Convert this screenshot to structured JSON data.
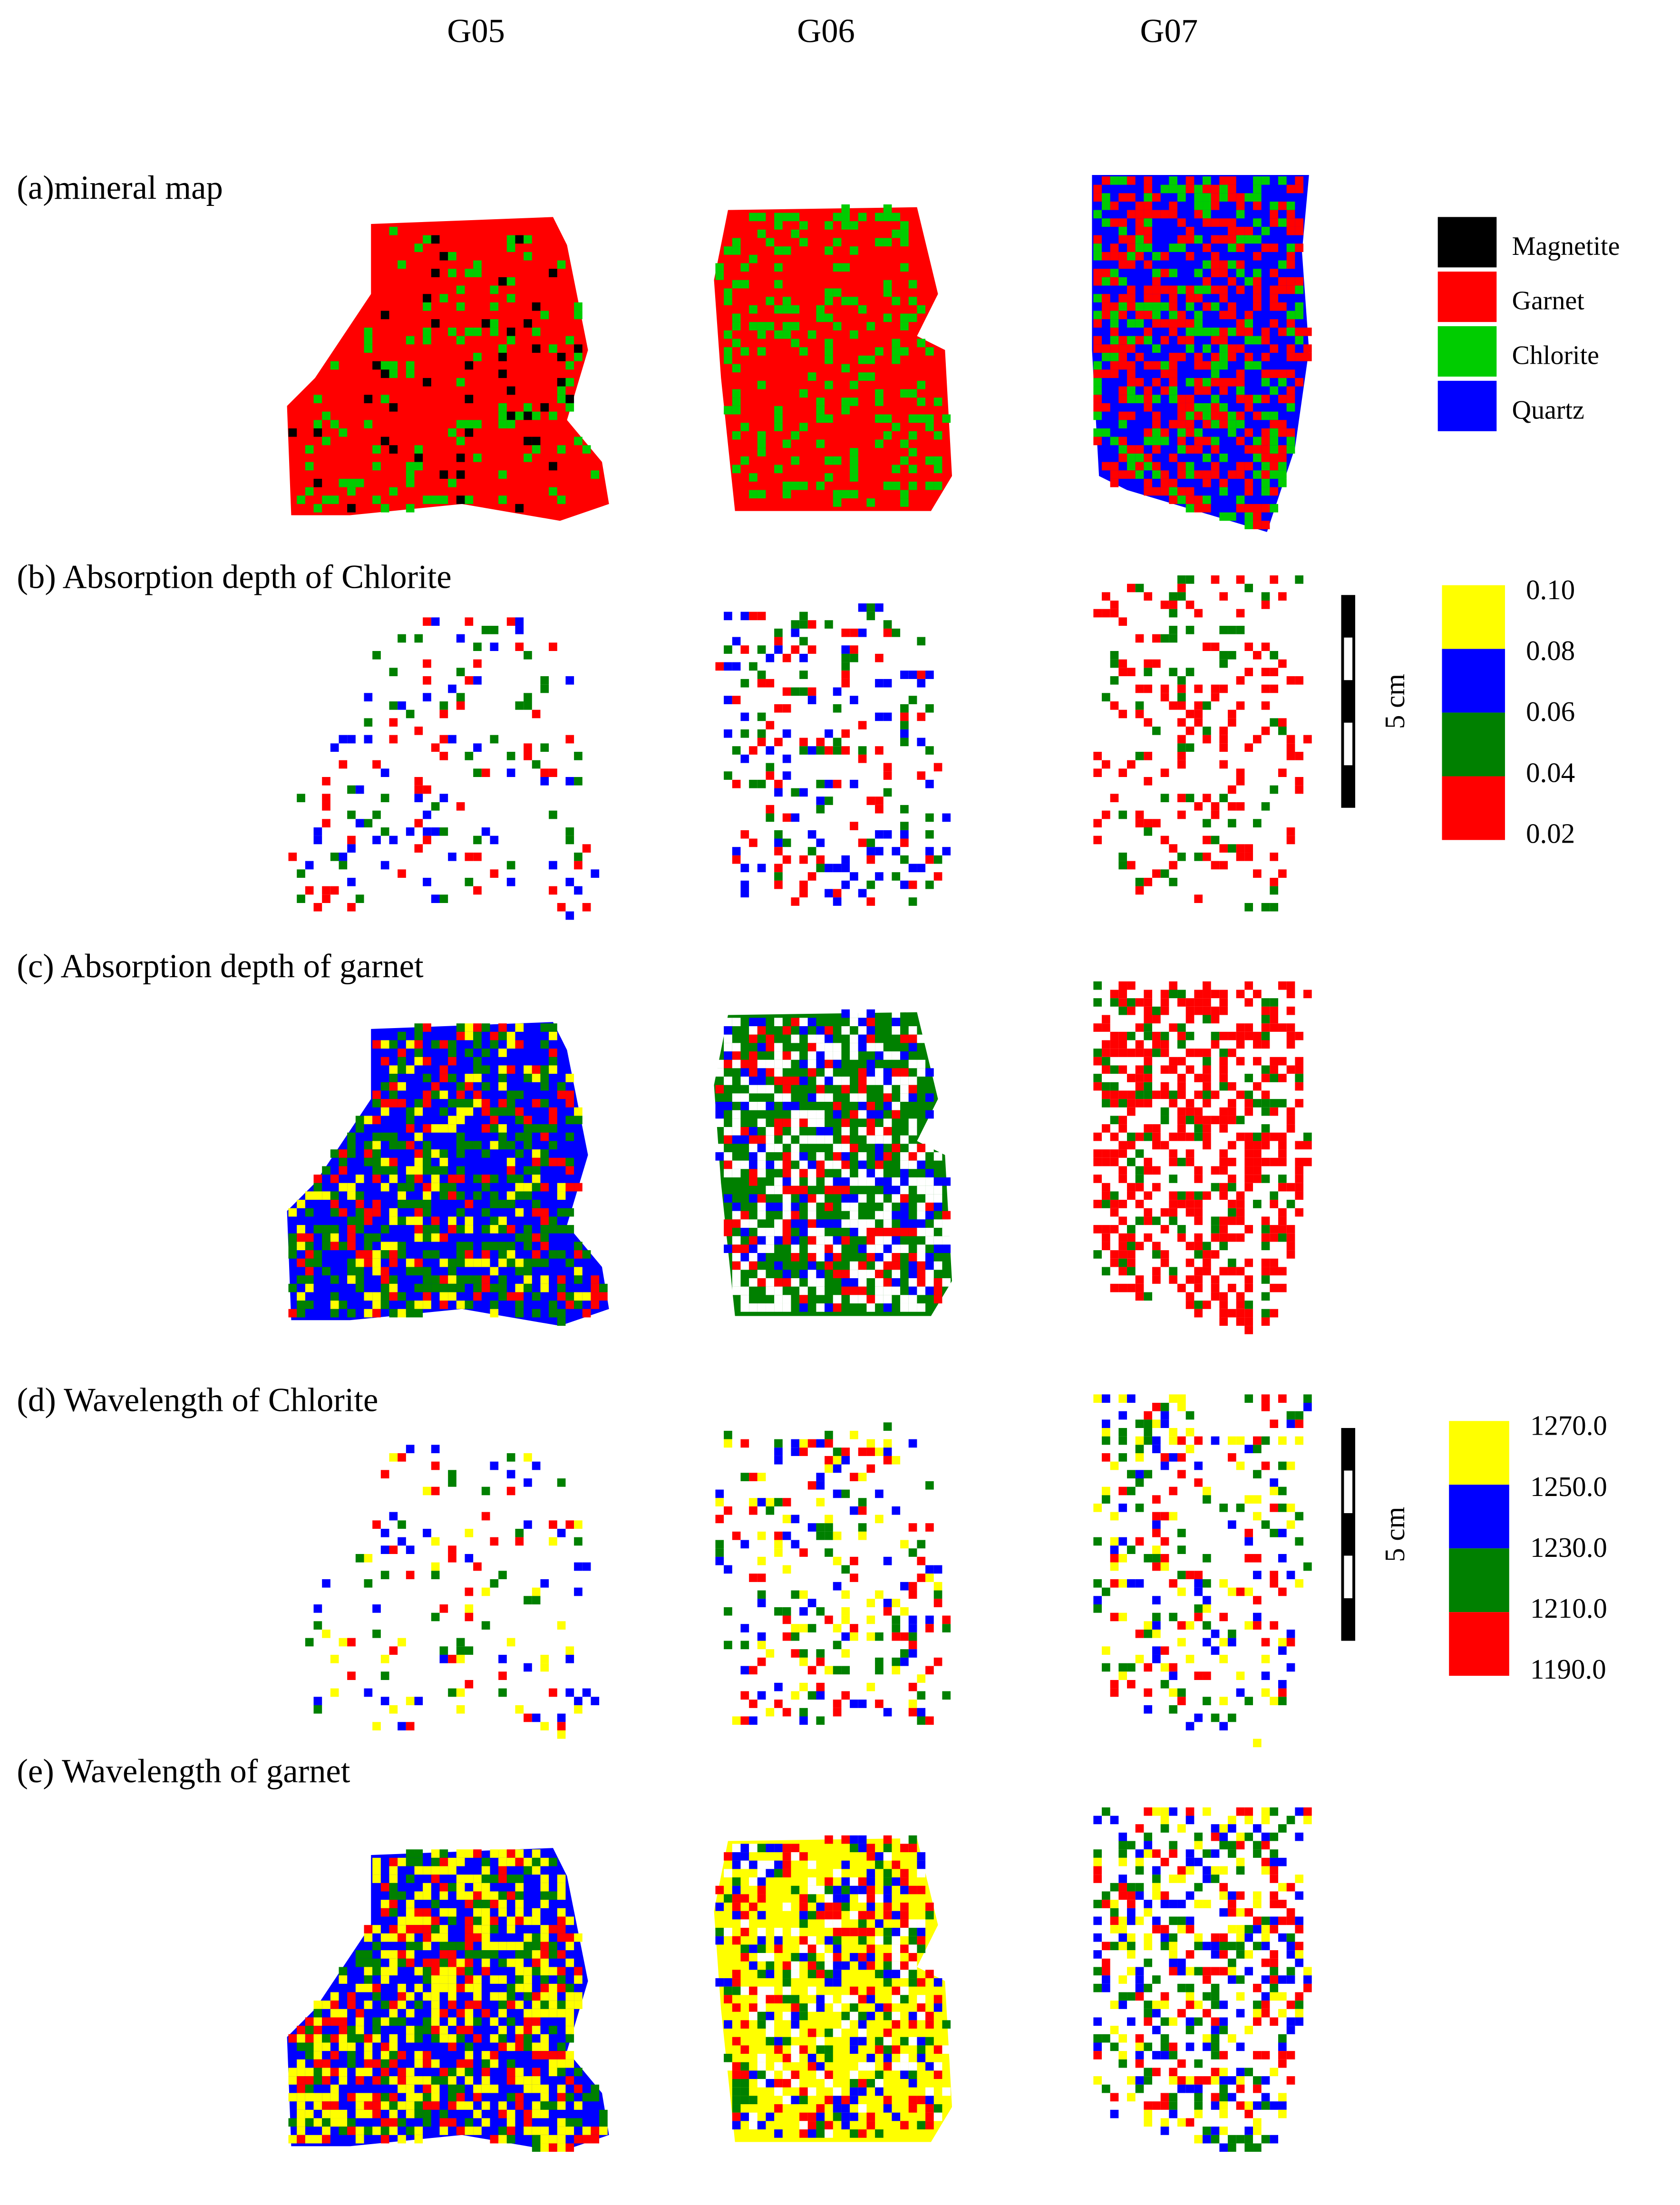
{
  "columns": [
    "G05",
    "G06",
    "G07"
  ],
  "rows": [
    {
      "label": "(a)mineral  map"
    },
    {
      "label": "(b) Absorption depth of Chlorite"
    },
    {
      "label": "(c) Absorption depth of garnet"
    },
    {
      "label": "(d) Wavelength of Chlorite"
    },
    {
      "label": "(e) Wavelength of garnet"
    }
  ],
  "mineral_legend": [
    {
      "name": "Magnetite",
      "color": "#000000"
    },
    {
      "name": "Garnet",
      "color": "#ff0000"
    },
    {
      "name": "Chlorite",
      "color": "#00cc00"
    },
    {
      "name": "Quartz",
      "color": "#0000ff"
    }
  ],
  "depth_legend": {
    "labels": [
      "0.10",
      "0.08",
      "0.06",
      "0.04",
      "0.02"
    ],
    "colors": [
      "#ffff00",
      "#0000ff",
      "#008000",
      "#ff0000"
    ]
  },
  "wavelength_legend": {
    "labels": [
      "1270.0",
      "1250.0",
      "1230.0",
      "1210.0",
      "1190.0"
    ],
    "colors": [
      "#ffff00",
      "#0000ff",
      "#008000",
      "#ff0000"
    ]
  },
  "scale_bars": [
    {
      "label": "5 cm"
    },
    {
      "label": "5 cm"
    }
  ]
}
